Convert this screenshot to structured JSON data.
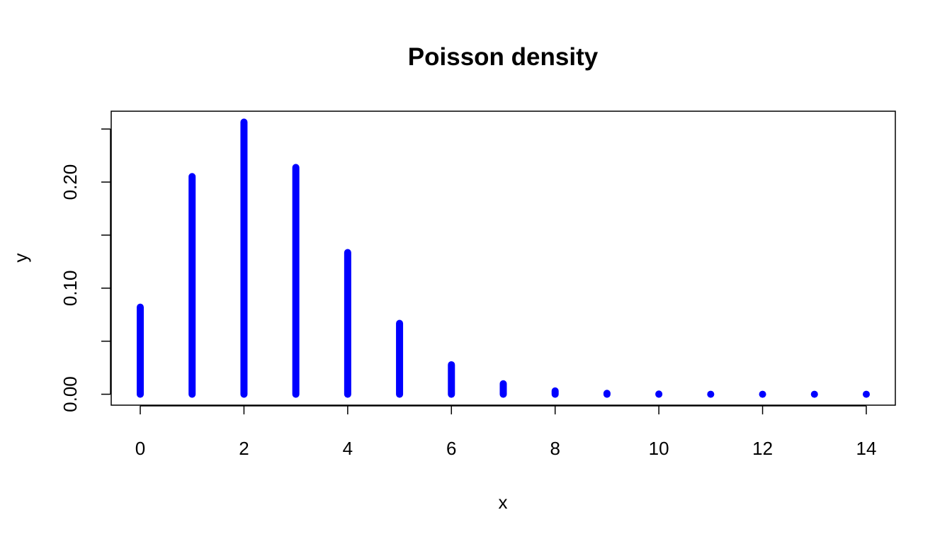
{
  "chart_data": {
    "type": "bar",
    "title": "Poisson density",
    "xlabel": "x",
    "ylabel": "y",
    "x": [
      0,
      1,
      2,
      3,
      4,
      5,
      6,
      7,
      8,
      9,
      10,
      11,
      12,
      13,
      14
    ],
    "values": [
      0.0821,
      0.2052,
      0.2565,
      0.2138,
      0.1336,
      0.0668,
      0.0278,
      0.0099,
      0.0031,
      0.0009,
      0.0002,
      0.0,
      0.0,
      0.0,
      0.0
    ],
    "xlim": [
      -0.56,
      14.56
    ],
    "ylim": [
      -0.0103,
      0.2668
    ],
    "x_ticks": [
      0,
      2,
      4,
      6,
      8,
      10,
      12,
      14
    ],
    "x_tick_labels": [
      "0",
      "2",
      "4",
      "6",
      "8",
      "10",
      "12",
      "14"
    ],
    "y_ticks": [
      0.0,
      0.05,
      0.1,
      0.15,
      0.2,
      0.25
    ],
    "y_tick_labels": [
      "0.00",
      "",
      "0.10",
      "",
      "0.20",
      ""
    ],
    "grid": false,
    "color": "#0000ff",
    "style": "histogram-lines"
  }
}
